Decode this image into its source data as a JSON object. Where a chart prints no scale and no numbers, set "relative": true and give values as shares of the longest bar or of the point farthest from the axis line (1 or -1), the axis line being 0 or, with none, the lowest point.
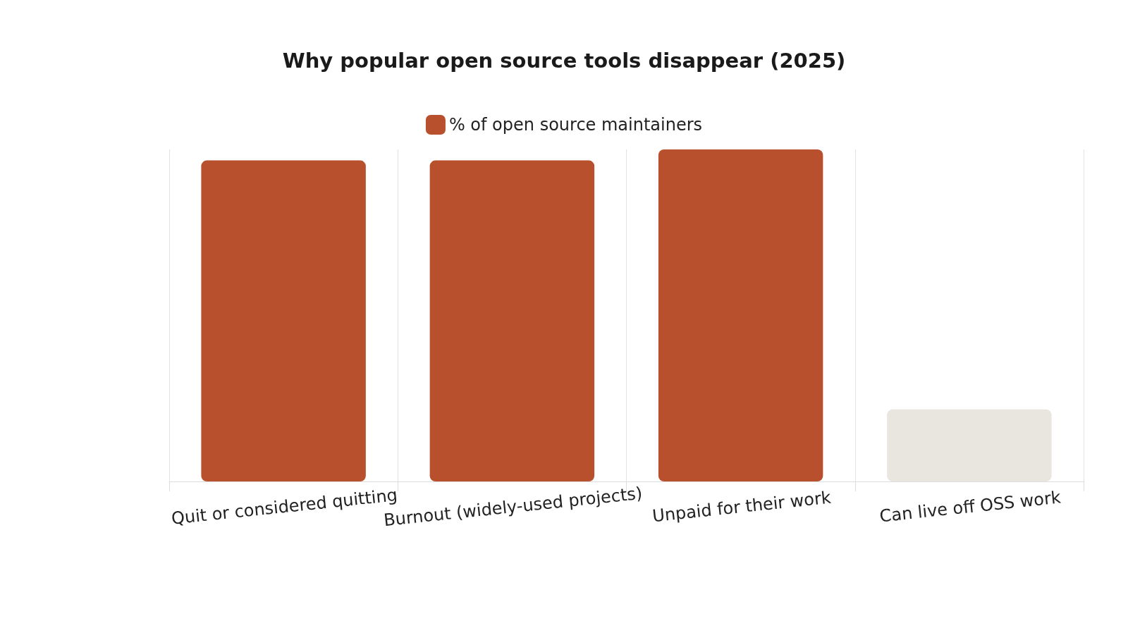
{
  "chart_data": {
    "type": "bar",
    "title": "Why popular open source tools disappear (2025)",
    "categories": [
      "Quit or considered quitting",
      "Burnout (widely-used projects)",
      "Unpaid for their work",
      "Can live off OSS work"
    ],
    "series": [
      {
        "name": "% of open source maintainers",
        "values": [
          0.967,
          0.967,
          1,
          0.217
        ],
        "colors": [
          "#b9502d",
          "#b9502d",
          "#b9502d",
          "#e8e6df"
        ]
      }
    ],
    "relative": true,
    "grid": "x",
    "legend": "top"
  }
}
